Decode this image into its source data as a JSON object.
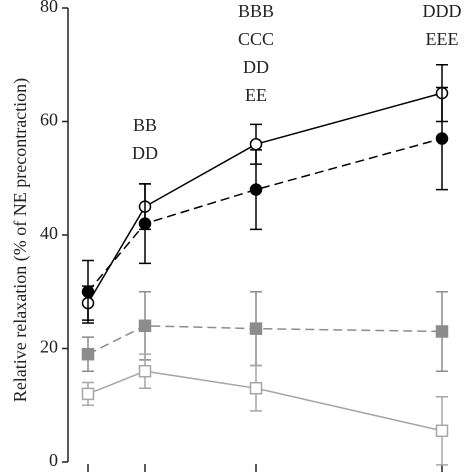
{
  "chart_data": {
    "type": "line",
    "y_label": "Relative relaxation (% of NE precontraction)",
    "categories": [
      null,
      null,
      null,
      null
    ],
    "ylim": [
      0,
      80
    ],
    "yticks": [
      0,
      20,
      40,
      60,
      80
    ],
    "annotations": [
      null,
      [
        "BB",
        "DD"
      ],
      [
        "BBB",
        "CCC",
        "DD",
        "EE"
      ],
      [
        "DDD",
        "EEE"
      ]
    ],
    "series": [
      {
        "color": "#000000",
        "dash": false,
        "marker": "open-circle",
        "values": [
          28,
          45,
          56,
          65
        ],
        "errors": [
          3,
          4,
          3.5,
          5
        ]
      },
      {
        "color": "#000000",
        "dash": true,
        "marker": "filled-circle",
        "values": [
          30,
          42,
          48,
          57
        ],
        "errors": [
          5.5,
          7,
          7,
          9
        ]
      },
      {
        "color": "#8c8c8c",
        "dash": true,
        "marker": "filled-square",
        "values": [
          19,
          24,
          23.5,
          23
        ],
        "errors": [
          3,
          6,
          6.5,
          7
        ]
      },
      {
        "color": "#a6a6a6",
        "dash": false,
        "marker": "open-square",
        "values": [
          12,
          16,
          13,
          5.5
        ],
        "errors": [
          2,
          3,
          4,
          6
        ]
      }
    ]
  }
}
